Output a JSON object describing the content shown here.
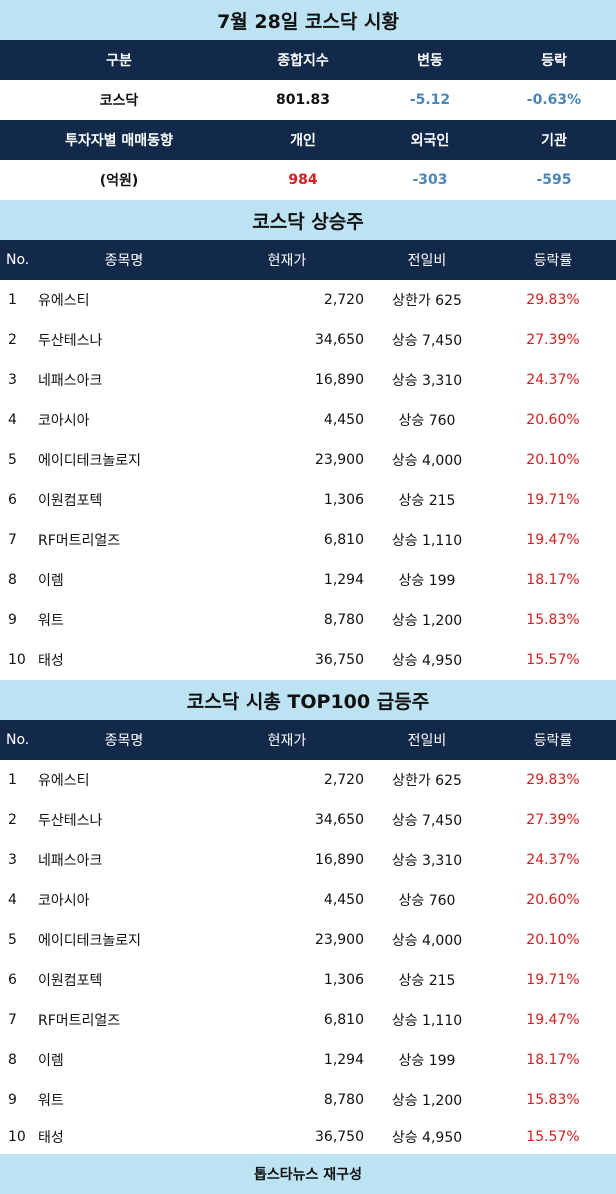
{
  "title": "7월 28일 코스닥 시황",
  "summary": {
    "header1": [
      "구분",
      "종합지수",
      "변동",
      "등락"
    ],
    "row1": [
      "코스닥",
      "801.83",
      "-5.12",
      "-0.63%"
    ],
    "header2": [
      "투자자별 매매동향",
      "개인",
      "외국인",
      "기관"
    ],
    "row2": [
      "(억원)",
      "984",
      "-303",
      "-595"
    ]
  },
  "section1_title": "코스닥 상승주",
  "section2_title": "코스닥 시총 TOP100 급등주",
  "table_headers": [
    "No.",
    "종목명",
    "현재가",
    "전일비",
    "등락률"
  ],
  "rows": [
    {
      "no": "1",
      "name": "유에스티",
      "price": "2,720",
      "diff": "상한가 625",
      "rate": "29.83%"
    },
    {
      "no": "2",
      "name": "두산테스나",
      "price": "34,650",
      "diff": "상승 7,450",
      "rate": "27.39%"
    },
    {
      "no": "3",
      "name": "네패스아크",
      "price": "16,890",
      "diff": "상승 3,310",
      "rate": "24.37%"
    },
    {
      "no": "4",
      "name": "코아시아",
      "price": "4,450",
      "diff": "상승 760",
      "rate": "20.60%"
    },
    {
      "no": "5",
      "name": "에이디테크놀로지",
      "price": "23,900",
      "diff": "상승 4,000",
      "rate": "20.10%"
    },
    {
      "no": "6",
      "name": "이원컴포텍",
      "price": "1,306",
      "diff": "상승 215",
      "rate": "19.71%"
    },
    {
      "no": "7",
      "name": "RF머트리얼즈",
      "price": "6,810",
      "diff": "상승 1,110",
      "rate": "19.47%"
    },
    {
      "no": "8",
      "name": "이렘",
      "price": "1,294",
      "diff": "상승 199",
      "rate": "18.17%"
    },
    {
      "no": "9",
      "name": "워트",
      "price": "8,780",
      "diff": "상승 1,200",
      "rate": "15.83%"
    },
    {
      "no": "10",
      "name": "태성",
      "price": "36,750",
      "diff": "상승 4,950",
      "rate": "15.57%"
    }
  ],
  "footer": "톱스타뉴스 재구성"
}
